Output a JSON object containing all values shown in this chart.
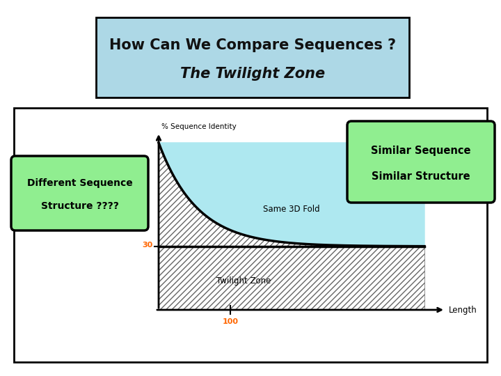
{
  "title_line1": "How Can We Compare Sequences ?",
  "title_line2": "The Twilight Zone",
  "title_bg": "#add8e6",
  "title_border": "#000000",
  "fill_above_color": "#aee8f0",
  "hatch_color": "#bbbbbb",
  "hatch_pattern": "////",
  "label_seq_identity": "% Sequence Identity",
  "label_length": "Length",
  "label_same3d": "Same 3D Fold",
  "label_twilight": "Twilight Zone",
  "label_30": "30",
  "label_100": "100",
  "box_left_text1": "Different Sequence",
  "box_left_text2": "Structure ????",
  "box_right_text1": "Similar Sequence",
  "box_right_text2": "Similar Structure",
  "box_green_bg": "#90ee90",
  "box_green_border": "#000000",
  "font_color_red": "#ff6600",
  "bg_color": "#ffffff"
}
